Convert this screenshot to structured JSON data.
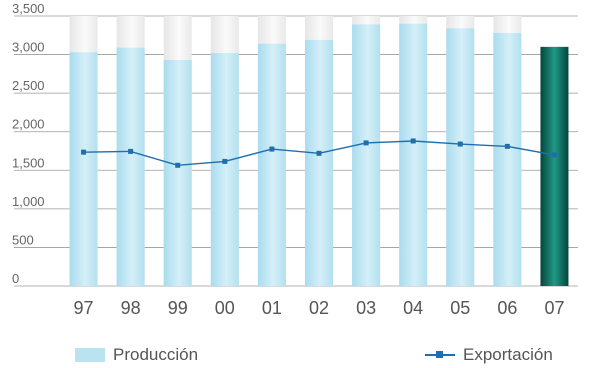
{
  "chart_data": {
    "type": "bar",
    "categories": [
      "97",
      "98",
      "99",
      "00",
      "01",
      "02",
      "03",
      "04",
      "05",
      "06",
      "07"
    ],
    "series": [
      {
        "name": "Producción",
        "type": "bar",
        "values": [
          3030,
          3090,
          2930,
          3020,
          3140,
          3190,
          3390,
          3400,
          3340,
          3280,
          3100
        ]
      },
      {
        "name": "Exportación",
        "type": "line",
        "values": [
          1735,
          1745,
          1565,
          1615,
          1775,
          1720,
          1855,
          1880,
          1840,
          1810,
          1700
        ]
      }
    ],
    "ylim": [
      0,
      3500
    ],
    "yticks": [
      "0",
      "500",
      "1,000",
      "1,500",
      "2,000",
      "2,500",
      "3,000",
      "3,500"
    ],
    "grid": true,
    "legend_position": "bottom"
  },
  "colors": {
    "bar_fill": "#b9e3f1",
    "bar_top": "#ececec",
    "highlight_bar": "#0b6b5c",
    "line": "#1f6fae",
    "grid": "#9a9a9a"
  }
}
